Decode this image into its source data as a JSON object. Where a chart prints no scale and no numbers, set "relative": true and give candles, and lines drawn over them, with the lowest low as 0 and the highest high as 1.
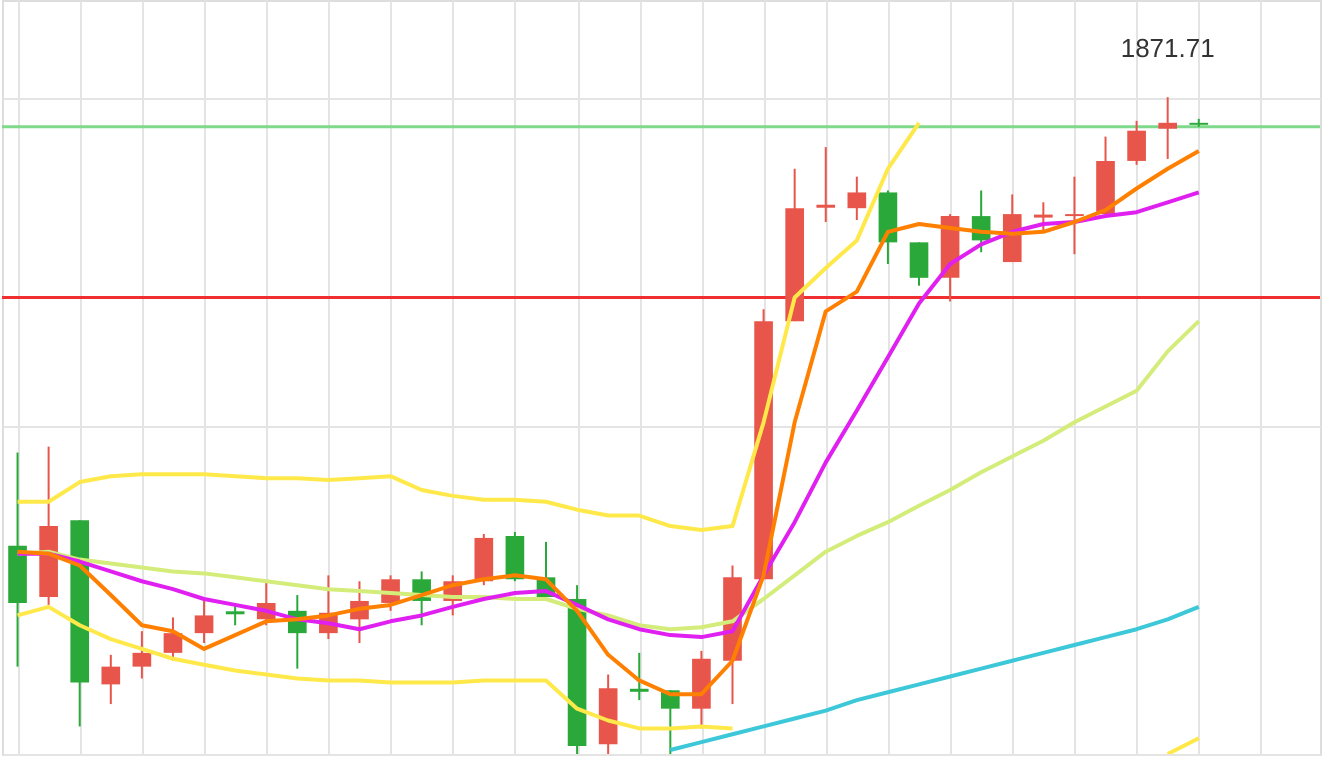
{
  "chart_data": {
    "type": "candlestick",
    "relative": true,
    "grid": true,
    "categories": [
      null,
      null,
      null,
      null,
      null,
      null,
      null,
      null,
      null,
      null,
      null,
      null,
      null,
      null,
      null,
      null,
      null,
      null,
      null,
      null,
      null,
      null,
      null,
      null,
      null,
      null,
      null,
      null,
      null,
      null,
      null,
      null,
      null,
      null,
      null,
      null,
      null,
      null,
      null
    ],
    "ohlc": [
      [
        0.317,
        0.459,
        0.133,
        0.23
      ],
      [
        0.239,
        0.468,
        0.227,
        0.347
      ],
      [
        0.356,
        0.356,
        0.042,
        0.109
      ],
      [
        0.106,
        0.151,
        0.076,
        0.133
      ],
      [
        0.133,
        0.187,
        0.115,
        0.154
      ],
      [
        0.154,
        0.208,
        0.142,
        0.184
      ],
      [
        0.184,
        0.233,
        0.169,
        0.211
      ],
      [
        0.215,
        0.227,
        0.196,
        0.215
      ],
      [
        0.205,
        0.263,
        0.196,
        0.23
      ],
      [
        0.218,
        0.242,
        0.13,
        0.184
      ],
      [
        0.184,
        0.272,
        0.175,
        0.215
      ],
      [
        0.205,
        0.263,
        0.169,
        0.233
      ],
      [
        0.23,
        0.272,
        0.218,
        0.266
      ],
      [
        0.266,
        0.278,
        0.196,
        0.233
      ],
      [
        0.233,
        0.272,
        0.211,
        0.263
      ],
      [
        0.263,
        0.335,
        0.257,
        0.329
      ],
      [
        0.332,
        0.338,
        0.263,
        0.266
      ],
      [
        0.269,
        0.323,
        0.239,
        0.239
      ],
      [
        0.236,
        0.257,
        0.0,
        0.012
      ],
      [
        0.015,
        0.121,
        0.0,
        0.1
      ],
      [
        0.097,
        0.154,
        0.082,
        0.097
      ],
      [
        0.097,
        0.097,
        0.0,
        0.069
      ],
      [
        0.069,
        0.157,
        0.039,
        0.145
      ],
      [
        0.142,
        0.287,
        0.076,
        0.269
      ],
      [
        0.266,
        0.677,
        0.266,
        0.659
      ],
      [
        0.659,
        0.891,
        0.659,
        0.831
      ],
      [
        0.834,
        0.924,
        0.81,
        0.834
      ],
      [
        0.831,
        0.879,
        0.813,
        0.855
      ],
      [
        0.855,
        0.858,
        0.746,
        0.779
      ],
      [
        0.779,
        0.779,
        0.713,
        0.725
      ],
      [
        0.725,
        0.822,
        0.689,
        0.819
      ],
      [
        0.819,
        0.858,
        0.764,
        0.782
      ],
      [
        0.749,
        0.852,
        0.749,
        0.822
      ],
      [
        0.819,
        0.84,
        0.795,
        0.819
      ],
      [
        0.819,
        0.879,
        0.761,
        0.822
      ],
      [
        0.822,
        0.94,
        0.822,
        0.903
      ],
      [
        0.903,
        0.964,
        0.897,
        0.949
      ],
      [
        0.952,
        1.0,
        0.906,
        0.961
      ],
      [
        0.961,
        0.967,
        0.955,
        0.958
      ]
    ],
    "colors": [
      "#2aa93a",
      "#e8554a",
      "#2aa93a",
      "#e8554a",
      "#e8554a",
      "#e8554a",
      "#e8554a",
      "#2aa93a",
      "#e8554a",
      "#2aa93a",
      "#e8554a",
      "#e8554a",
      "#e8554a",
      "#2aa93a",
      "#e8554a",
      "#e8554a",
      "#2aa93a",
      "#2aa93a",
      "#2aa93a",
      "#e8554a",
      "#2aa93a",
      "#2aa93a",
      "#e8554a",
      "#e8554a",
      "#e8554a",
      "#e8554a",
      "#e8554a",
      "#e8554a",
      "#2aa93a",
      "#2aa93a",
      "#e8554a",
      "#2aa93a",
      "#e8554a",
      "#e8554a",
      "#e8554a",
      "#e8554a",
      "#e8554a",
      "#e8554a",
      "#2aa93a"
    ],
    "series": [
      {
        "type": "line",
        "color": "#ffe94a",
        "values": [
          0.384,
          0.384,
          0.414,
          0.423,
          0.426,
          0.426,
          0.426,
          0.423,
          0.42,
          0.42,
          0.417,
          0.42,
          0.423,
          0.402,
          0.393,
          0.387,
          0.387,
          0.384,
          0.372,
          0.363,
          0.363,
          0.347,
          0.341,
          0.347,
          0.505,
          0.695,
          0.74,
          0.782,
          0.891,
          0.961,
          null,
          null,
          null,
          null,
          null,
          null,
          null,
          null,
          null
        ]
      },
      {
        "type": "line",
        "color": "#ffe94a",
        "values": [
          0.211,
          0.224,
          0.196,
          0.175,
          0.16,
          0.145,
          0.136,
          0.127,
          0.121,
          0.115,
          0.112,
          0.112,
          0.109,
          0.109,
          0.109,
          0.112,
          0.112,
          0.112,
          0.069,
          0.051,
          0.039,
          0.039,
          0.042,
          0.039,
          null,
          null,
          null,
          null,
          null,
          null,
          null,
          null,
          null,
          null,
          null,
          null,
          null,
          0.0,
          0.024
        ]
      },
      {
        "type": "line",
        "color": "#d4ec7a",
        "values": [
          0.305,
          0.308,
          0.296,
          0.29,
          0.284,
          0.278,
          0.275,
          0.269,
          0.263,
          0.257,
          0.251,
          0.248,
          0.245,
          0.242,
          0.239,
          0.239,
          0.236,
          0.236,
          0.221,
          0.211,
          0.196,
          0.19,
          0.193,
          0.202,
          0.236,
          0.272,
          0.308,
          0.332,
          0.353,
          0.378,
          0.402,
          0.429,
          0.453,
          0.477,
          0.505,
          0.529,
          0.553,
          0.613,
          0.659
        ]
      },
      {
        "type": "line",
        "color": "#e020f0",
        "values": [
          0.305,
          0.305,
          0.293,
          0.278,
          0.263,
          0.251,
          0.236,
          0.227,
          0.218,
          0.205,
          0.199,
          0.19,
          0.202,
          0.211,
          0.224,
          0.236,
          0.245,
          0.248,
          0.227,
          0.205,
          0.19,
          0.181,
          0.178,
          0.187,
          0.272,
          0.353,
          0.444,
          0.523,
          0.604,
          0.686,
          0.746,
          0.776,
          0.795,
          0.807,
          0.81,
          0.819,
          0.825,
          0.84,
          0.855
        ]
      },
      {
        "type": "line",
        "color": "#ff8000",
        "values": [
          0.308,
          0.305,
          0.287,
          0.242,
          0.196,
          0.187,
          0.16,
          0.181,
          0.202,
          0.205,
          0.211,
          0.221,
          0.227,
          0.242,
          0.257,
          0.266,
          0.272,
          0.266,
          0.218,
          0.151,
          0.112,
          0.091,
          0.091,
          0.142,
          0.272,
          0.505,
          0.674,
          0.704,
          0.795,
          0.807,
          0.801,
          0.795,
          0.792,
          0.795,
          0.81,
          0.828,
          0.861,
          0.891,
          0.918
        ]
      },
      {
        "type": "line",
        "color": "#3cc8d8",
        "values": [
          null,
          null,
          null,
          null,
          null,
          null,
          null,
          null,
          null,
          null,
          null,
          null,
          null,
          null,
          null,
          null,
          null,
          null,
          null,
          null,
          null,
          0.006,
          0.018,
          0.03,
          0.042,
          0.054,
          0.066,
          0.082,
          0.094,
          0.106,
          0.118,
          0.13,
          0.142,
          0.154,
          0.166,
          0.178,
          0.19,
          0.205,
          0.224
        ]
      }
    ],
    "ref_lines": [
      {
        "axis": "y",
        "value": 0.695,
        "color": "#f03030"
      },
      {
        "axis": "y",
        "value": 0.955,
        "color": "#7fd98a"
      }
    ],
    "annotations": [
      {
        "text": "1871.71",
        "y": 1.0
      }
    ]
  }
}
